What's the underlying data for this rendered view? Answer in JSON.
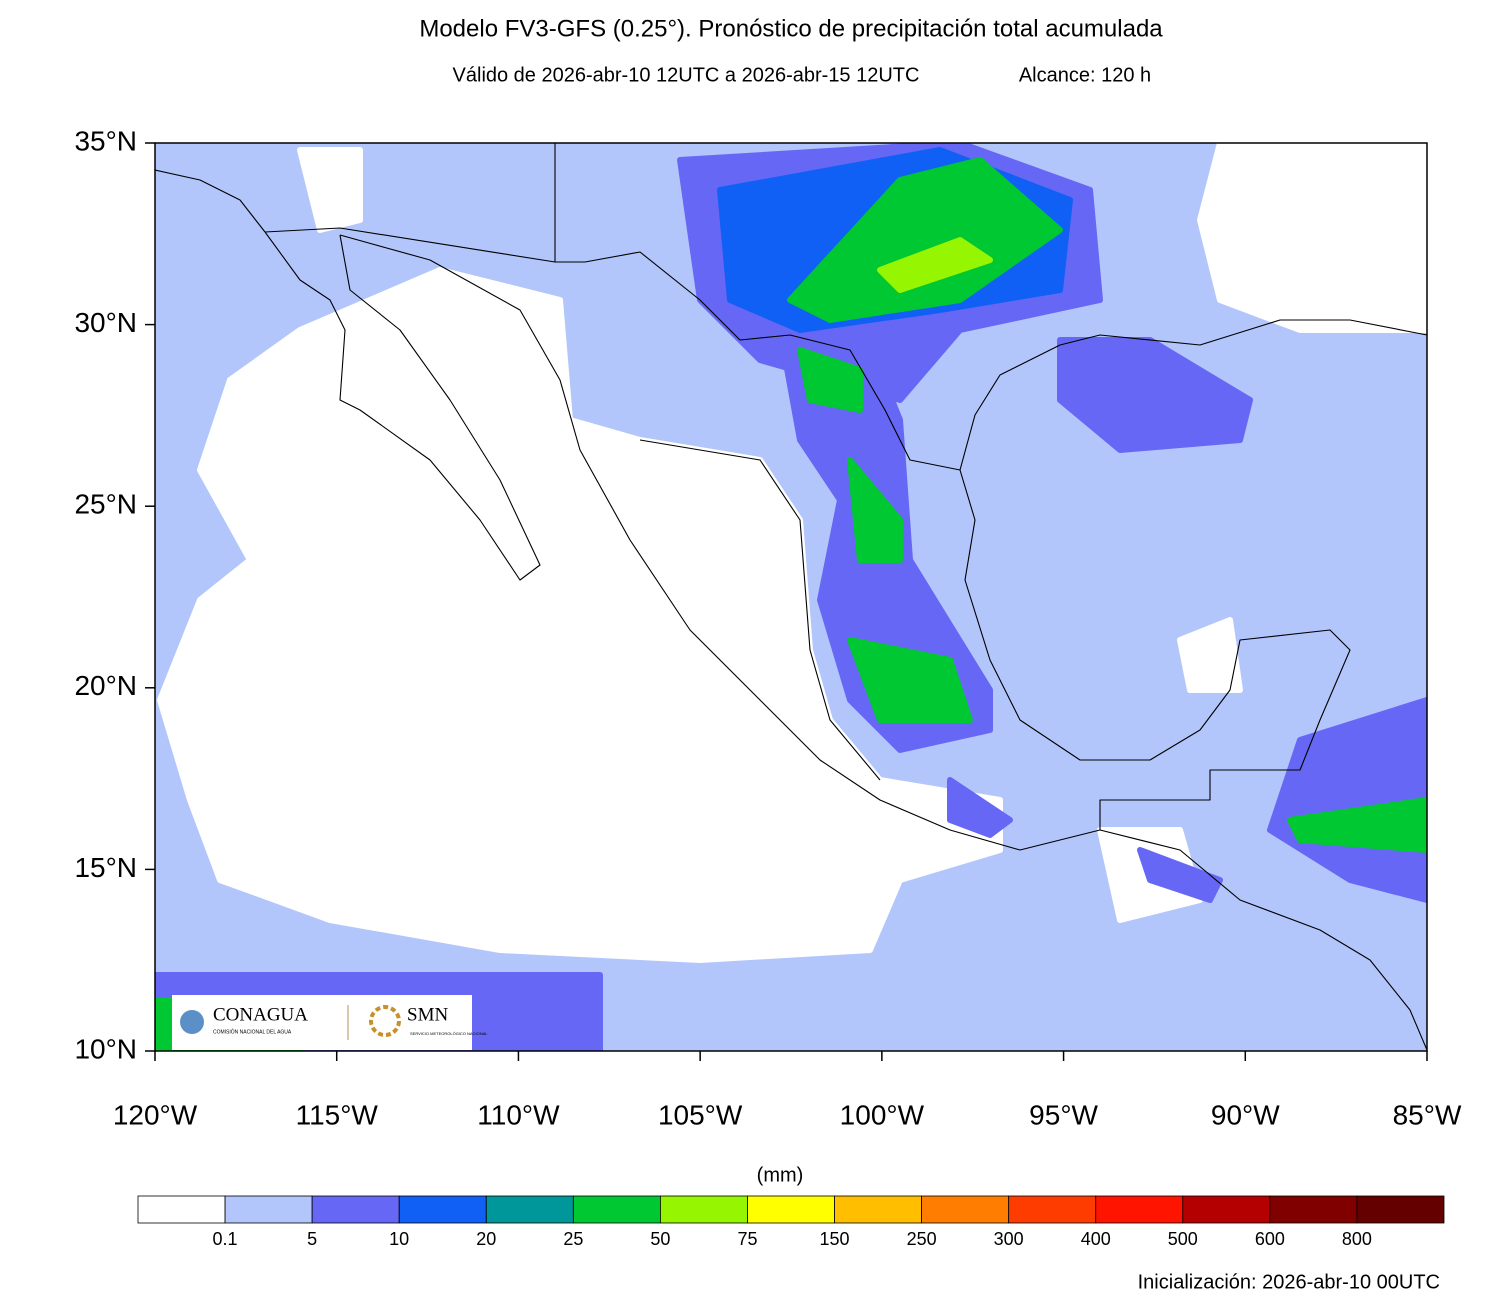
{
  "header": {
    "title": "Modelo FV3-GFS (0.25°). Pronóstico de precipitación total acumulada",
    "subtitle": "Válido de 2026-abr-10 12UTC a 2026-abr-15 12UTC",
    "range": "Alcance: 120 h"
  },
  "map": {
    "lat_labels": [
      "35°N",
      "30°N",
      "25°N",
      "20°N",
      "15°N",
      "10°N"
    ],
    "lon_labels": [
      "120°W",
      "115°W",
      "110°W",
      "105°W",
      "100°W",
      "95°W",
      "90°W",
      "85°W"
    ]
  },
  "logos": {
    "conagua": "CONAGUA",
    "conagua_sub": "COMISIÓN NACIONAL DEL AGUA",
    "smn": "SMN",
    "smn_sub": "SERVICIO METEOROLÓGICO NACIONAL"
  },
  "colorbar": {
    "units": "(mm)",
    "levels": [
      0.1,
      5,
      10,
      20,
      25,
      50,
      75,
      150,
      250,
      300,
      400,
      500,
      600,
      800
    ],
    "colors": [
      "#ffffff",
      "#b3c6fb",
      "#6767f5",
      "#1060f5",
      "#00979a",
      "#00c832",
      "#96f500",
      "#ffff00",
      "#ffbe00",
      "#ff7d00",
      "#ff3c00",
      "#ff1400",
      "#b40000",
      "#800000",
      "#640000"
    ]
  },
  "footer": "Inicialización: 2026-abr-10 00UTC"
}
